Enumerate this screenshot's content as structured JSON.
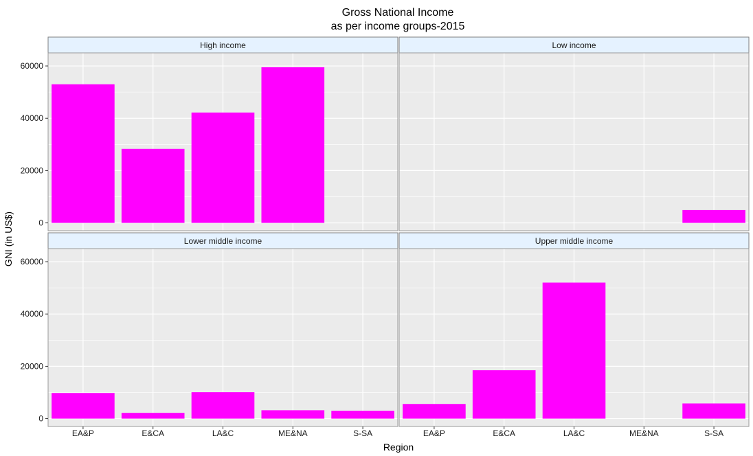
{
  "colors": {
    "bar": "#ff00ff",
    "panel_bg": "#ebebeb",
    "grid": "#ffffff",
    "strip_bg": "#e5f2ff",
    "strip_border": "#7f7f7f",
    "panel_border": "#999999"
  },
  "chart_data": {
    "type": "bar",
    "title": "Gross National Income",
    "subtitle": "as per income groups-2015",
    "xlabel": "Region",
    "ylabel": "GNI (in US$)",
    "categories": [
      "EA&P",
      "E&CA",
      "LA&C",
      "ME&NA",
      "S-SA"
    ],
    "ylim": [
      -3000,
      65000
    ],
    "yticks": [
      0,
      20000,
      40000,
      60000
    ],
    "ytick_labels": [
      "0",
      "20000",
      "40000",
      "60000"
    ],
    "grid": true,
    "facets": [
      {
        "name": "High income",
        "values": [
          53000,
          28300,
          42200,
          59500,
          null
        ]
      },
      {
        "name": "Low income",
        "values": [
          null,
          null,
          null,
          null,
          4900
        ]
      },
      {
        "name": "Lower middle income",
        "values": [
          9800,
          2200,
          10100,
          3200,
          3000
        ]
      },
      {
        "name": "Upper middle income",
        "values": [
          5600,
          18500,
          52000,
          null,
          5800
        ]
      }
    ]
  }
}
